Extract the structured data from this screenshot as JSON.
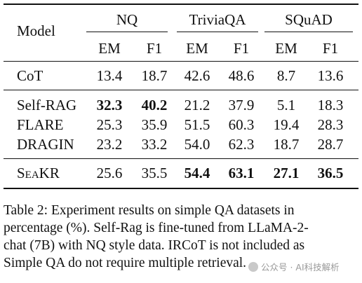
{
  "table": {
    "header": {
      "model": "Model",
      "groups": [
        "NQ",
        "TriviaQA",
        "SQuAD"
      ],
      "metrics": [
        "EM",
        "F1",
        "EM",
        "F1",
        "EM",
        "F1"
      ]
    },
    "rows": [
      {
        "model": "CoT",
        "values": [
          "13.4",
          "18.7",
          "42.6",
          "48.6",
          "8.7",
          "13.6"
        ],
        "bold": [
          false,
          false,
          false,
          false,
          false,
          false
        ]
      },
      {
        "model": "Self-RAG",
        "values": [
          "32.3",
          "40.2",
          "21.2",
          "37.9",
          "5.1",
          "18.3"
        ],
        "bold": [
          true,
          true,
          false,
          false,
          false,
          false
        ]
      },
      {
        "model": "FLARE",
        "values": [
          "25.3",
          "35.9",
          "51.5",
          "60.3",
          "19.4",
          "28.3"
        ],
        "bold": [
          false,
          false,
          false,
          false,
          false,
          false
        ]
      },
      {
        "model": "DRAGIN",
        "values": [
          "23.2",
          "33.2",
          "54.0",
          "62.3",
          "18.7",
          "28.7"
        ],
        "bold": [
          false,
          false,
          false,
          false,
          false,
          false
        ]
      },
      {
        "model": "SeaKR",
        "values": [
          "25.6",
          "35.5",
          "54.4",
          "63.1",
          "27.1",
          "36.5"
        ],
        "bold": [
          false,
          false,
          true,
          true,
          true,
          true
        ]
      }
    ]
  },
  "caption": {
    "lines": [
      "Table 2: Experiment results on simple QA datasets in",
      "percentage (%). Self-Rag is fine-tuned from LLaMA-2-",
      "chat (7B) with NQ style data. IRCoT is not included as",
      "Simple QA do not require multiple retrieval."
    ]
  },
  "watermark": "公众号 · AI科技解析"
}
